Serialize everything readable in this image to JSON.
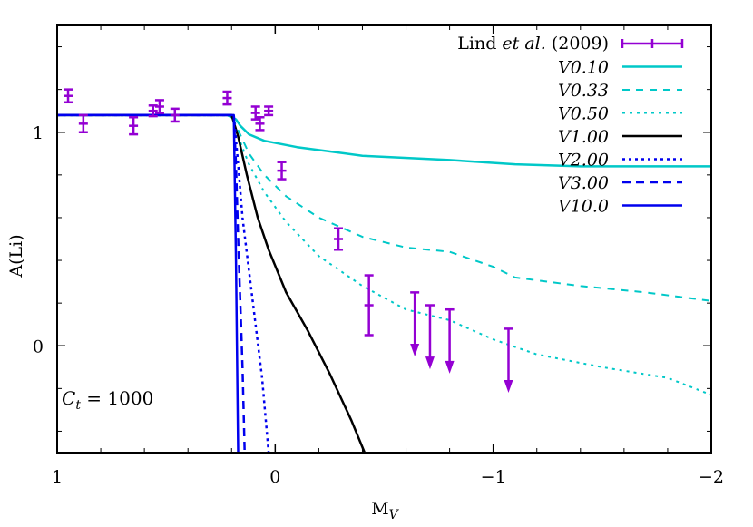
{
  "chart_data": {
    "type": "line",
    "xlabel": "M",
    "xlabel_sub": "V",
    "ylabel": "A(Li)",
    "xlim": [
      1,
      -2
    ],
    "ylim": [
      -0.5,
      1.5
    ],
    "x_reversed": true,
    "x_ticks": [
      1,
      0,
      -1,
      -2
    ],
    "x_tick_labels": [
      "1",
      "0",
      "−1",
      "−2"
    ],
    "y_ticks": [
      1,
      0
    ],
    "y_tick_labels": [
      "1",
      "0"
    ],
    "annotation": {
      "var": "C",
      "sub": "t",
      "value": " = 1000"
    },
    "legend_position": "top-right",
    "colors": {
      "data": "#9400d3",
      "cyan": "#00c8c8",
      "black": "#000000",
      "blue": "#0000ee"
    },
    "observations": {
      "name_prefix": "Lind ",
      "name_italic": "et al.",
      "name_suffix": " (2009)",
      "points": [
        {
          "x": 0.95,
          "y": 1.17,
          "err": 0.03
        },
        {
          "x": 0.88,
          "y": 1.04,
          "err": 0.04
        },
        {
          "x": 0.65,
          "y": 1.03,
          "err": 0.04
        },
        {
          "x": 0.56,
          "y": 1.1,
          "err": 0.025
        },
        {
          "x": 0.53,
          "y": 1.12,
          "err": 0.03
        },
        {
          "x": 0.46,
          "y": 1.08,
          "err": 0.03
        },
        {
          "x": 0.22,
          "y": 1.16,
          "err": 0.03
        },
        {
          "x": 0.09,
          "y": 1.09,
          "err": 0.03
        },
        {
          "x": 0.07,
          "y": 1.04,
          "err": 0.03
        },
        {
          "x": 0.03,
          "y": 1.1,
          "err": 0.02
        },
        {
          "x": -0.03,
          "y": 0.82,
          "err": 0.04
        },
        {
          "x": -0.29,
          "y": 0.5,
          "err": 0.05
        },
        {
          "x": -0.43,
          "y": 0.19,
          "err": 0.14
        }
      ],
      "upper_limits": [
        {
          "x": -0.64,
          "y": 0.25,
          "bottom": -0.05
        },
        {
          "x": -0.71,
          "y": 0.19,
          "bottom": -0.11
        },
        {
          "x": -0.8,
          "y": 0.17,
          "bottom": -0.13
        },
        {
          "x": -1.07,
          "y": 0.08,
          "bottom": -0.22
        }
      ]
    },
    "series": [
      {
        "name": "V0.10",
        "color": "cyan",
        "dash": "",
        "width": 2.5,
        "x": [
          1,
          0.22,
          0.18,
          0.16,
          0.12,
          0.05,
          -0.1,
          -0.4,
          -0.8,
          -1.1,
          -1.4,
          -2.0
        ],
        "y": [
          1.08,
          1.08,
          1.06,
          1.03,
          0.99,
          0.96,
          0.93,
          0.89,
          0.87,
          0.85,
          0.84,
          0.84
        ]
      },
      {
        "name": "V0.33",
        "color": "cyan",
        "dash": "8,7",
        "width": 2,
        "x": [
          1,
          0.2,
          0.17,
          0.12,
          0.05,
          -0.05,
          -0.2,
          -0.4,
          -0.6,
          -0.8,
          -1.0,
          -1.1,
          -1.4,
          -1.7,
          -2.0
        ],
        "y": [
          1.08,
          1.08,
          1.01,
          0.9,
          0.8,
          0.7,
          0.6,
          0.51,
          0.46,
          0.44,
          0.37,
          0.32,
          0.28,
          0.25,
          0.21
        ]
      },
      {
        "name": "V0.50",
        "color": "cyan",
        "dash": "3,5",
        "width": 2,
        "x": [
          1,
          0.2,
          0.17,
          0.12,
          0.05,
          -0.05,
          -0.2,
          -0.4,
          -0.6,
          -0.8,
          -1.0,
          -1.2,
          -1.5,
          -1.8,
          -2.0
        ],
        "y": [
          1.08,
          1.08,
          0.98,
          0.85,
          0.72,
          0.58,
          0.42,
          0.28,
          0.17,
          0.12,
          0.03,
          -0.04,
          -0.1,
          -0.15,
          -0.23
        ]
      },
      {
        "name": "V1.00",
        "color": "black",
        "dash": "",
        "width": 2.5,
        "x": [
          1,
          0.2,
          0.17,
          0.13,
          0.08,
          0.03,
          -0.05,
          -0.15,
          -0.25,
          -0.35,
          -0.41
        ],
        "y": [
          1.08,
          1.08,
          0.98,
          0.8,
          0.6,
          0.45,
          0.25,
          0.07,
          -0.13,
          -0.35,
          -0.5
        ]
      },
      {
        "name": "V2.00",
        "color": "blue",
        "dash": "3,4",
        "width": 2.5,
        "x": [
          1,
          0.19,
          0.17,
          0.15,
          0.12,
          0.09,
          0.06,
          0.03
        ],
        "y": [
          1.08,
          1.08,
          0.85,
          0.6,
          0.35,
          0.1,
          -0.15,
          -0.5
        ]
      },
      {
        "name": "V3.00",
        "color": "blue",
        "dash": "9,6",
        "width": 2.5,
        "x": [
          1,
          0.19,
          0.18,
          0.17,
          0.16,
          0.15,
          0.14
        ],
        "y": [
          1.08,
          1.08,
          0.85,
          0.5,
          0.2,
          -0.1,
          -0.5
        ]
      },
      {
        "name": "V10.0",
        "color": "blue",
        "dash": "",
        "width": 2.5,
        "x": [
          1,
          0.19,
          0.18,
          0.17
        ],
        "y": [
          1.08,
          1.08,
          0.4,
          -0.5
        ]
      }
    ]
  }
}
